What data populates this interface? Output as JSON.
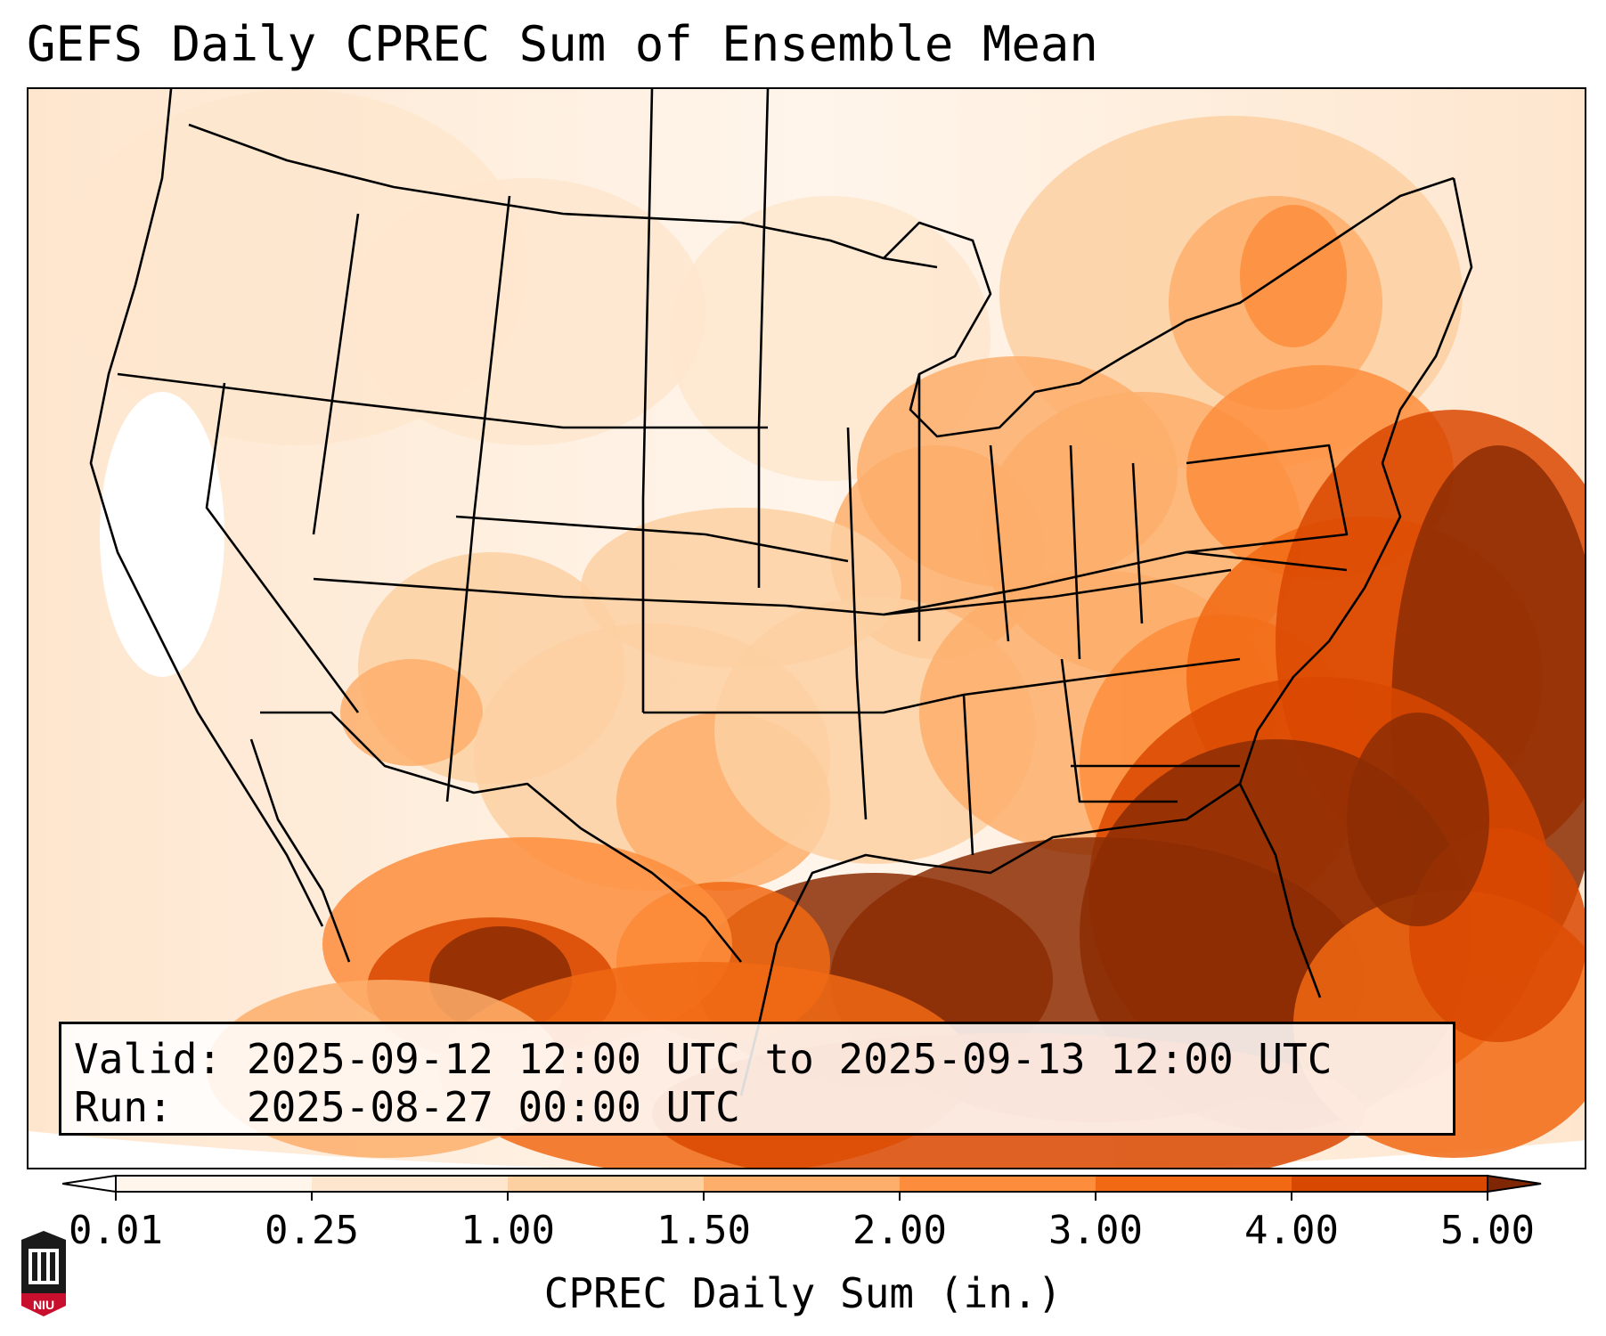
{
  "title": "GEFS Daily CPREC Sum of Ensemble Mean",
  "info": {
    "valid_label": "Valid:",
    "valid_value": "2025-09-12 12:00 UTC to 2025-09-13 12:00 UTC",
    "run_label": "Run:",
    "run_value": "2025-08-27 00:00 UTC"
  },
  "colorbar": {
    "label": "CPREC Daily Sum (in.)",
    "ticks": [
      "0.01",
      "0.25",
      "1.00",
      "1.50",
      "2.00",
      "3.00",
      "4.00",
      "5.00"
    ],
    "colors": [
      "#fff5eb",
      "#fee6ce",
      "#fdd0a2",
      "#fdae6b",
      "#fd8d3c",
      "#f16913",
      "#d94801",
      "#8c2d04"
    ],
    "under_color": "#ffffff",
    "over_color": "#7f2704"
  },
  "logo": {
    "text": "NIU",
    "color": "#c8102e"
  },
  "map": {
    "projection": "Lambert Conformal, CONUS",
    "field": "CPREC"
  }
}
